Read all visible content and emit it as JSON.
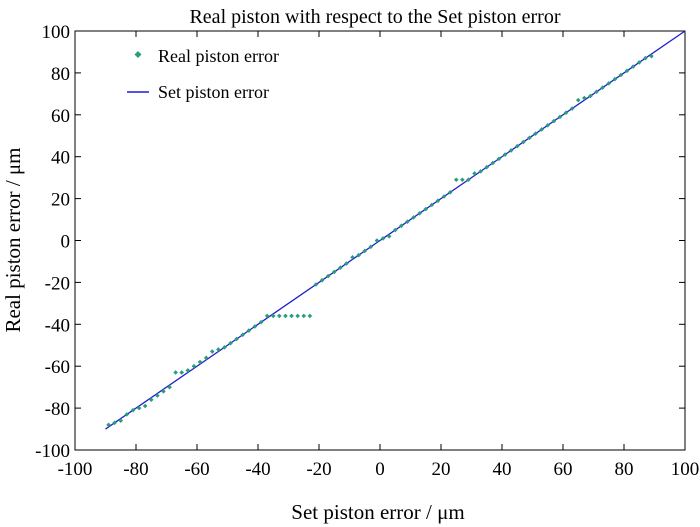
{
  "chart_data": {
    "type": "scatter",
    "title": "Real piston with respect to the Set piston error",
    "xlabel": "Set piston error / μm",
    "ylabel": "Real piston error / μm",
    "xlim": [
      -100,
      100
    ],
    "ylim": [
      -100,
      100
    ],
    "xticks": [
      "-100",
      "-80",
      "-60",
      "-40",
      "-20",
      "0",
      "20",
      "40",
      "60",
      "80",
      "100"
    ],
    "yticks": [
      "-100",
      "-80",
      "-60",
      "-40",
      "-20",
      "0",
      "20",
      "40",
      "60",
      "80",
      "100"
    ],
    "grid": false,
    "legend_position": "top-left",
    "colors": {
      "real": "#2a9d7f",
      "set": "#1f1fd0"
    },
    "series": [
      {
        "name": "Real piston error",
        "kind": "scatter",
        "x": [
          -89,
          -87,
          -85,
          -83,
          -81,
          -79,
          -77,
          -75,
          -73,
          -71,
          -69,
          -67,
          -65,
          -63,
          -61,
          -59,
          -57,
          -55,
          -53,
          -51,
          -49,
          -47,
          -45,
          -43,
          -41,
          -39,
          -37,
          -35,
          -33,
          -31,
          -29,
          -27,
          -25,
          -23,
          -21,
          -19,
          -17,
          -15,
          -13,
          -11,
          -9,
          -7,
          -5,
          -3,
          -1,
          1,
          3,
          5,
          7,
          9,
          11,
          13,
          15,
          17,
          19,
          21,
          23,
          25,
          27,
          29,
          31,
          33,
          35,
          37,
          39,
          41,
          43,
          45,
          47,
          49,
          51,
          53,
          55,
          57,
          59,
          61,
          63,
          65,
          67,
          69,
          71,
          73,
          75,
          77,
          79,
          81,
          83,
          85,
          87,
          89
        ],
        "y": [
          -88,
          -87,
          -86,
          -83,
          -81,
          -80,
          -79,
          -76,
          -74,
          -72,
          -70,
          -63,
          -63,
          -62,
          -60,
          -58,
          -56,
          -53,
          -52,
          -51,
          -49,
          -47,
          -45,
          -43,
          -41,
          -39,
          -36,
          -36,
          -36,
          -36,
          -36,
          -36,
          -36,
          -36,
          -21,
          -19,
          -17,
          -15,
          -13,
          -11,
          -8,
          -7,
          -5,
          -3,
          0,
          1,
          2,
          5,
          7,
          9,
          11,
          13,
          15,
          17,
          19,
          21,
          23,
          29,
          29,
          29,
          32,
          33,
          35,
          37,
          39,
          41,
          43,
          45,
          47,
          49,
          51,
          53,
          55,
          57,
          59,
          61,
          63,
          67,
          68,
          69,
          71,
          73,
          75,
          77,
          79,
          81,
          83,
          85,
          87,
          88
        ]
      },
      {
        "name": "Set piston error",
        "kind": "line",
        "x": [
          -90,
          100
        ],
        "y": [
          -90,
          100
        ]
      }
    ]
  }
}
